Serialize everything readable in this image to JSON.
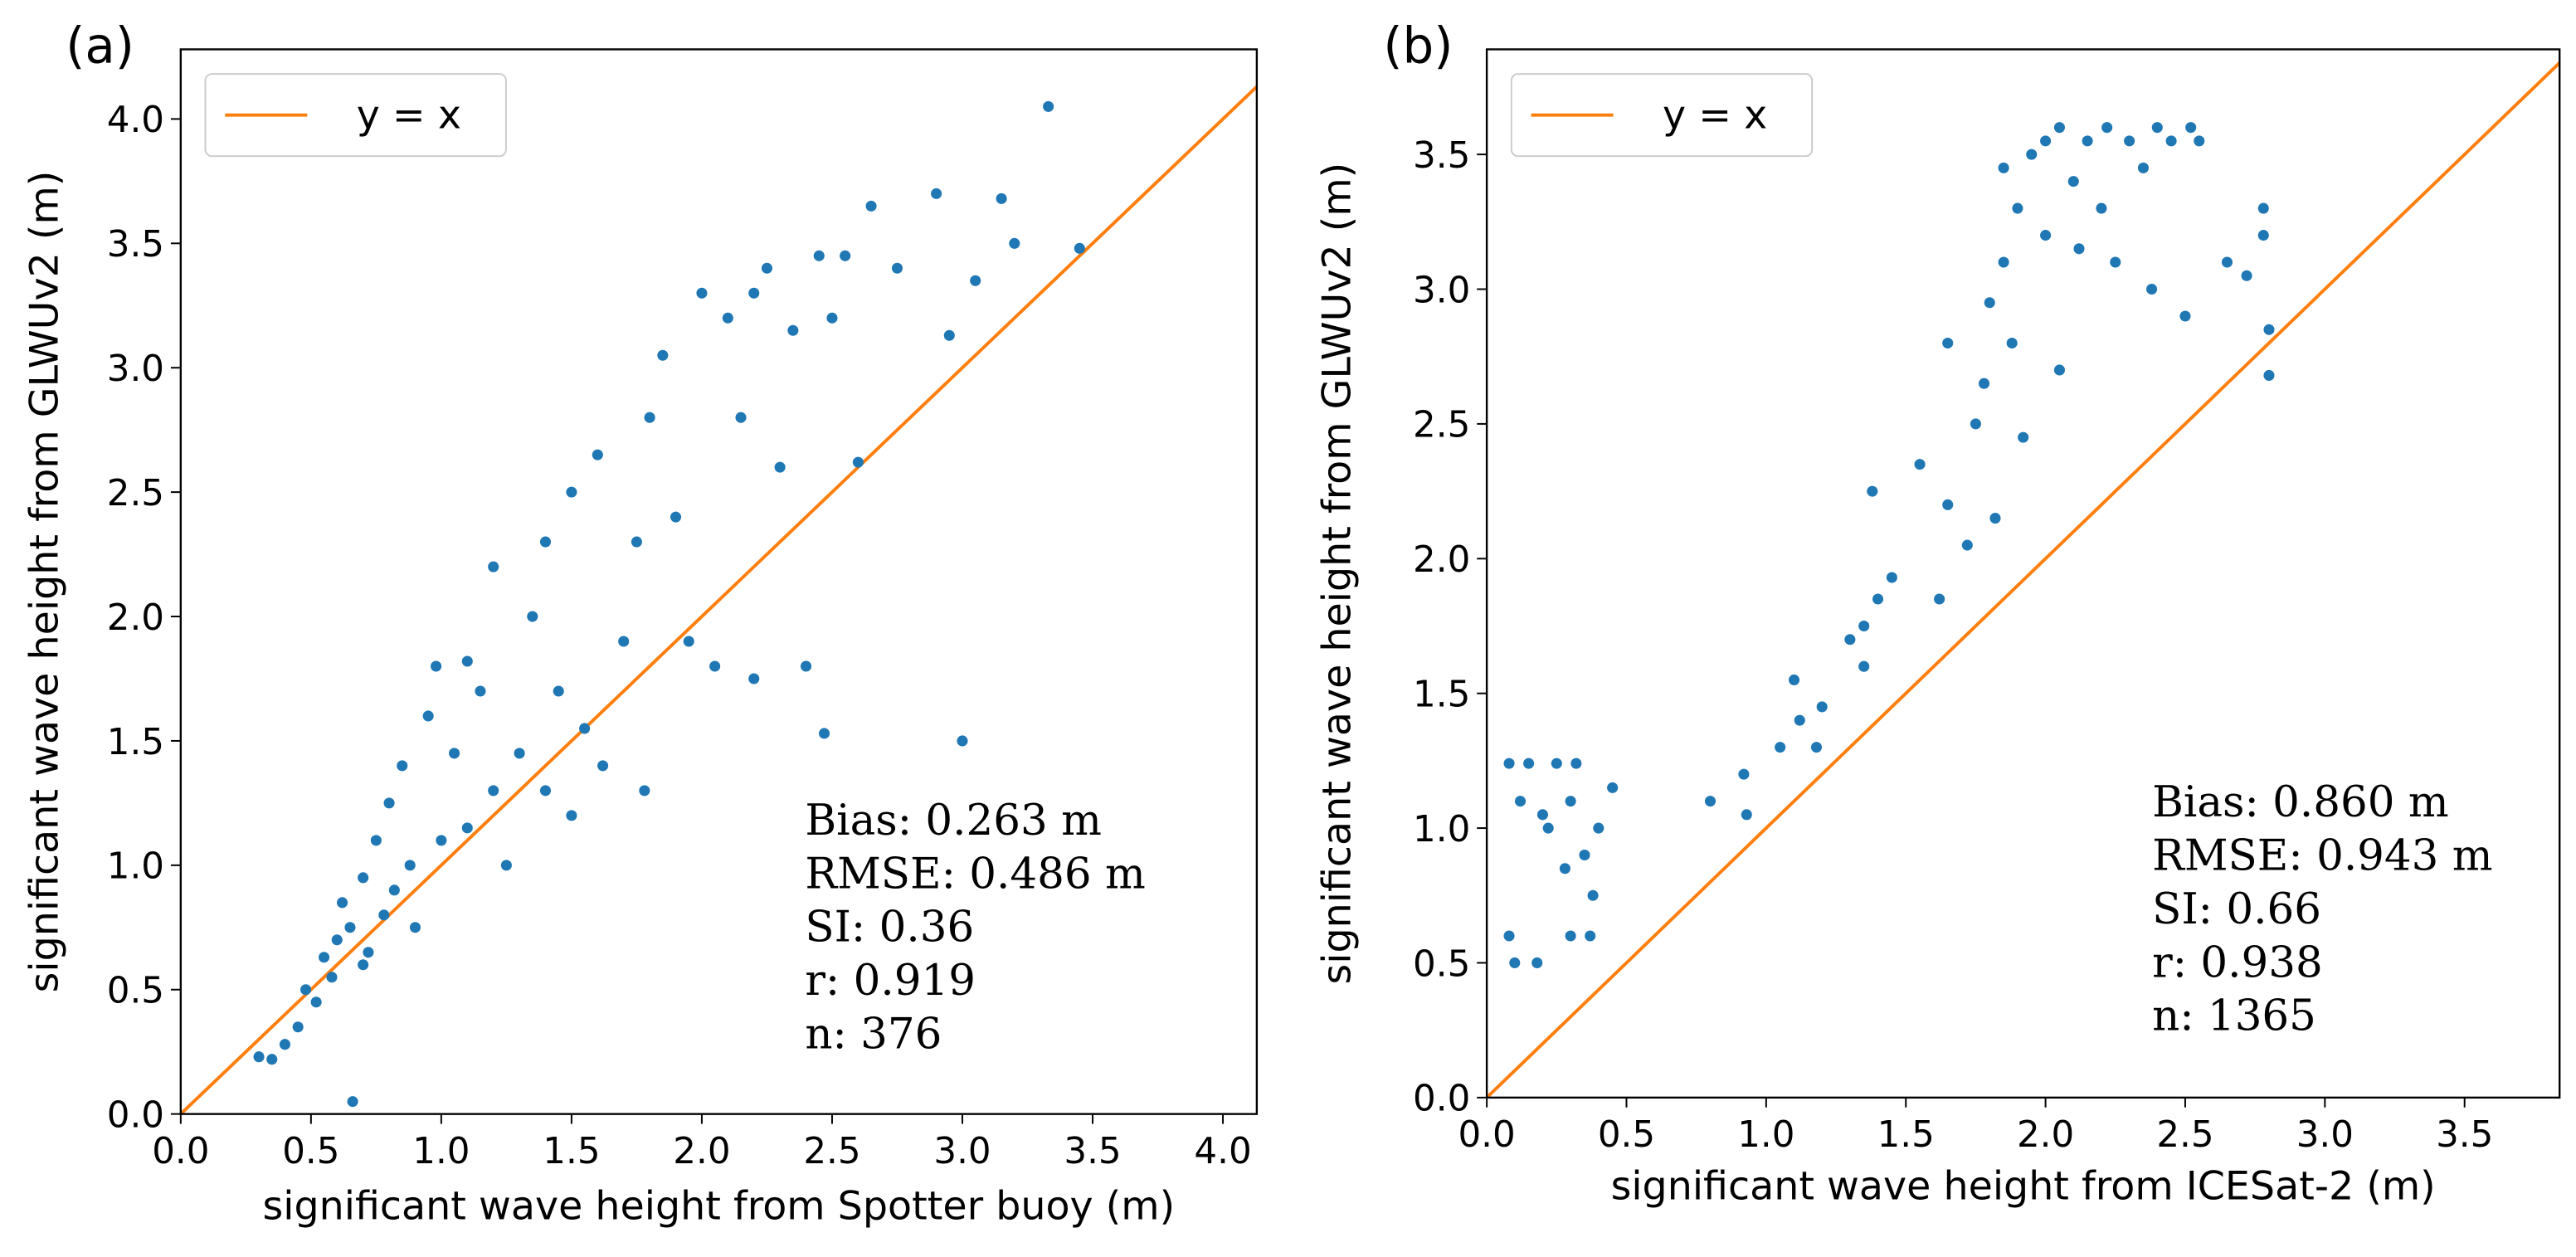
{
  "chart_data": [
    {
      "type": "scatter",
      "panel_label": "(a)",
      "xlabel": "significant wave height from Spotter buoy (m)",
      "ylabel": "significant wave height from GLWUv2 (m)",
      "xlim": [
        0,
        4.13
      ],
      "ylim": [
        0,
        4.28
      ],
      "xticks": [
        {
          "value": 0,
          "label": "0.0"
        },
        {
          "value": 0.5,
          "label": "0.5"
        },
        {
          "value": 1,
          "label": "1.0"
        },
        {
          "value": 1.5,
          "label": "1.5"
        },
        {
          "value": 2,
          "label": "2.0"
        },
        {
          "value": 2.5,
          "label": "2.5"
        },
        {
          "value": 3,
          "label": "3.0"
        },
        {
          "value": 3.5,
          "label": "3.5"
        },
        {
          "value": 4,
          "label": "4.0"
        }
      ],
      "yticks": [
        {
          "value": 0,
          "label": "0.0"
        },
        {
          "value": 0.5,
          "label": "0.5"
        },
        {
          "value": 1,
          "label": "1.0"
        },
        {
          "value": 1.5,
          "label": "1.5"
        },
        {
          "value": 2,
          "label": "2.0"
        },
        {
          "value": 2.5,
          "label": "2.5"
        },
        {
          "value": 3,
          "label": "3.0"
        },
        {
          "value": 3.5,
          "label": "3.5"
        },
        {
          "value": 4,
          "label": "4.0"
        }
      ],
      "color": "#1f77b4",
      "x": [
        0.3,
        0.35,
        0.4,
        0.45,
        0.48,
        0.52,
        0.55,
        0.58,
        0.6,
        0.62,
        0.65,
        0.66,
        0.7,
        0.72,
        0.75,
        0.78,
        0.8,
        0.82,
        0.85,
        0.88,
        0.9,
        0.95,
        0.98,
        1.0,
        1.05,
        1.1,
        1.15,
        1.2,
        1.2,
        1.25,
        1.3,
        1.35,
        1.4,
        1.45,
        1.5,
        1.5,
        1.55,
        1.6,
        1.62,
        1.7,
        1.75,
        1.78,
        1.8,
        1.85,
        1.9,
        1.95,
        2.0,
        2.05,
        2.1,
        2.15,
        2.2,
        2.25,
        2.3,
        2.35,
        2.4,
        2.45,
        2.47,
        2.5,
        2.55,
        2.6,
        2.65,
        2.75,
        2.9,
        2.95,
        3.0,
        3.05,
        3.15,
        3.2,
        3.33,
        3.45,
        1.1,
        0.7,
        1.4,
        2.2
      ],
      "y": [
        0.23,
        0.22,
        0.28,
        0.35,
        0.5,
        0.45,
        0.63,
        0.55,
        0.7,
        0.85,
        0.75,
        0.05,
        0.95,
        0.65,
        1.1,
        0.8,
        1.25,
        0.9,
        1.4,
        1.0,
        0.75,
        1.6,
        1.8,
        1.1,
        1.45,
        1.15,
        1.7,
        2.2,
        1.3,
        1.0,
        1.45,
        2.0,
        1.3,
        1.7,
        2.5,
        1.2,
        1.55,
        2.65,
        1.4,
        1.9,
        2.3,
        1.3,
        2.8,
        3.05,
        2.4,
        1.9,
        3.3,
        1.8,
        3.2,
        2.8,
        1.75,
        3.4,
        2.6,
        3.15,
        1.8,
        3.45,
        1.53,
        3.2,
        3.45,
        2.62,
        3.65,
        3.4,
        3.7,
        3.13,
        1.5,
        3.35,
        3.68,
        3.5,
        4.05,
        3.48,
        1.82,
        0.6,
        2.3,
        3.3
      ],
      "reference_line": {
        "name": "y = x",
        "color": "#ff7f0e"
      },
      "annotations": [
        "Bias: 0.263 m",
        "RMSE: 0.486 m",
        "SI: 0.36",
        "r: 0.919",
        "n: 376"
      ]
    },
    {
      "type": "scatter",
      "panel_label": "(b)",
      "xlabel": "significant wave height from ICESat-2 (m)",
      "ylabel": "significant wave height from GLWUv2 (m)",
      "xlim": [
        0,
        3.84
      ],
      "ylim": [
        0,
        3.89
      ],
      "xticks": [
        {
          "value": 0,
          "label": "0.0"
        },
        {
          "value": 0.5,
          "label": "0.5"
        },
        {
          "value": 1,
          "label": "1.0"
        },
        {
          "value": 1.5,
          "label": "1.5"
        },
        {
          "value": 2,
          "label": "2.0"
        },
        {
          "value": 2.5,
          "label": "2.5"
        },
        {
          "value": 3,
          "label": "3.0"
        },
        {
          "value": 3.5,
          "label": "3.5"
        }
      ],
      "yticks": [
        {
          "value": 0,
          "label": "0.0"
        },
        {
          "value": 0.5,
          "label": "0.5"
        },
        {
          "value": 1,
          "label": "1.0"
        },
        {
          "value": 1.5,
          "label": "1.5"
        },
        {
          "value": 2,
          "label": "2.0"
        },
        {
          "value": 2.5,
          "label": "2.5"
        },
        {
          "value": 3,
          "label": "3.0"
        },
        {
          "value": 3.5,
          "label": "3.5"
        }
      ],
      "color": "#1f77b4",
      "x": [
        0.08,
        0.1,
        0.12,
        0.15,
        0.18,
        0.2,
        0.22,
        0.25,
        0.28,
        0.3,
        0.32,
        0.35,
        0.37,
        0.38,
        0.4,
        0.45,
        0.08,
        0.3,
        0.8,
        0.92,
        0.93,
        1.05,
        1.1,
        1.12,
        1.18,
        1.2,
        1.35,
        1.35,
        1.38,
        1.4,
        1.45,
        1.55,
        1.62,
        1.65,
        1.65,
        1.72,
        1.75,
        1.78,
        1.8,
        1.82,
        1.85,
        1.85,
        1.88,
        1.9,
        1.92,
        1.95,
        2.0,
        2.05,
        2.05,
        2.1,
        2.12,
        2.15,
        2.2,
        2.22,
        2.25,
        2.3,
        2.35,
        2.38,
        2.4,
        2.45,
        2.5,
        2.52,
        2.55,
        2.65,
        2.72,
        2.78,
        2.78,
        2.8,
        2.8,
        2.0,
        1.3
      ],
      "y": [
        1.24,
        0.5,
        1.1,
        1.24,
        0.5,
        1.05,
        1.0,
        1.24,
        0.85,
        0.6,
        1.24,
        0.9,
        0.6,
        0.75,
        1.0,
        1.15,
        0.6,
        1.1,
        1.1,
        1.2,
        1.05,
        1.3,
        1.55,
        1.4,
        1.3,
        1.45,
        1.6,
        1.75,
        2.25,
        1.85,
        1.93,
        2.35,
        1.85,
        2.2,
        2.8,
        2.05,
        2.5,
        2.65,
        2.95,
        2.15,
        3.1,
        3.45,
        2.8,
        3.3,
        2.45,
        3.5,
        3.2,
        3.6,
        2.7,
        3.4,
        3.15,
        3.55,
        3.3,
        3.6,
        3.1,
        3.55,
        3.45,
        3.0,
        3.6,
        3.55,
        2.9,
        3.6,
        3.55,
        3.1,
        3.05,
        3.3,
        3.2,
        2.85,
        2.68,
        3.55,
        1.7
      ],
      "reference_line": {
        "name": "y = x",
        "color": "#ff7f0e"
      },
      "annotations": [
        "Bias: 0.860 m",
        "RMSE: 0.943 m",
        "SI: 0.66",
        "r: 0.938",
        "n: 1365"
      ]
    }
  ]
}
